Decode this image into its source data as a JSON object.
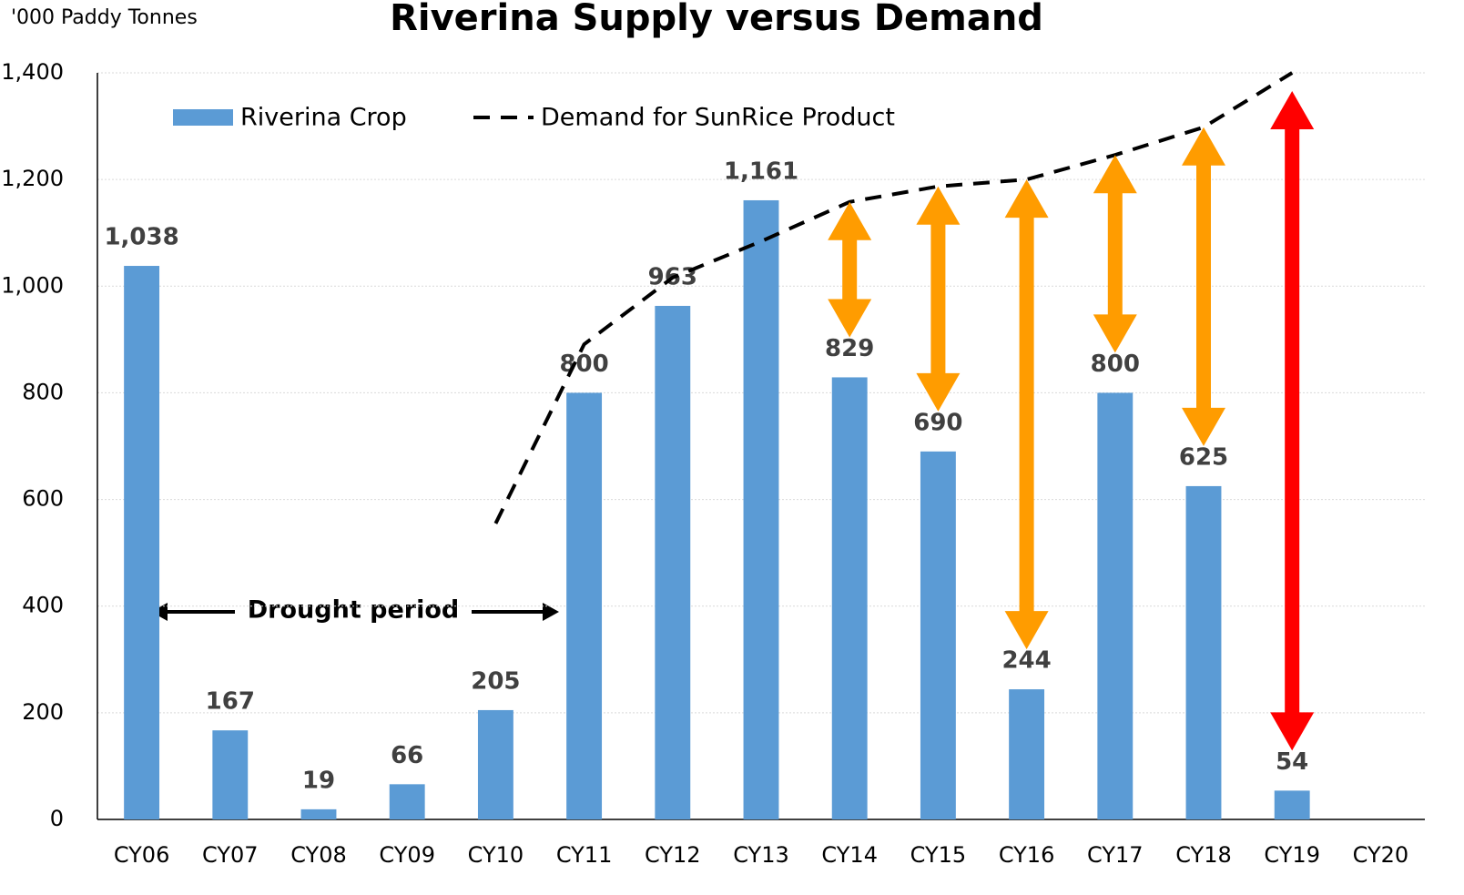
{
  "chart_data": {
    "type": "bar_line",
    "title": "Riverina Supply versus Demand",
    "y_axis_label": "'000 Paddy Tonnes",
    "categories": [
      "CY06",
      "CY07",
      "CY08",
      "CY09",
      "CY10",
      "CY11",
      "CY12",
      "CY13",
      "CY14",
      "CY15",
      "CY16",
      "CY17",
      "CY18",
      "CY19",
      "CY20"
    ],
    "series": [
      {
        "name": "Riverina Crop",
        "type": "bar",
        "color": "#5b9bd5",
        "values": [
          1038,
          167,
          19,
          66,
          205,
          800,
          963,
          1161,
          829,
          690,
          244,
          800,
          625,
          54,
          null
        ],
        "value_labels": [
          "1,038",
          "167",
          "19",
          "66",
          "205",
          "800",
          "963",
          "1,161",
          "829",
          "690",
          "244",
          "800",
          "625",
          "54",
          null
        ]
      },
      {
        "name": "Demand for SunRice Product",
        "type": "line",
        "color": "#000000",
        "dashed": true,
        "values": [
          null,
          null,
          null,
          null,
          555,
          891,
          1016,
          1084,
          1158,
          1187,
          1200,
          1246,
          1298,
          1400,
          null
        ]
      }
    ],
    "gap_arrow_colors": [
      null,
      null,
      null,
      null,
      null,
      null,
      null,
      null,
      "#ff9c00",
      "#ff9c00",
      "#ff9c00",
      "#ff9c00",
      "#ff9c00",
      "#ff0000",
      null
    ],
    "annotation": "Drought period",
    "ylim": [
      0,
      1400
    ],
    "yticks": [
      0,
      200,
      400,
      600,
      800,
      {
        "value": 1000,
        "label": "1,000"
      },
      {
        "value": 1200,
        "label": "1,200"
      },
      {
        "value": 1400,
        "label": "1,400"
      }
    ],
    "grid": true,
    "legend": "top-left"
  }
}
